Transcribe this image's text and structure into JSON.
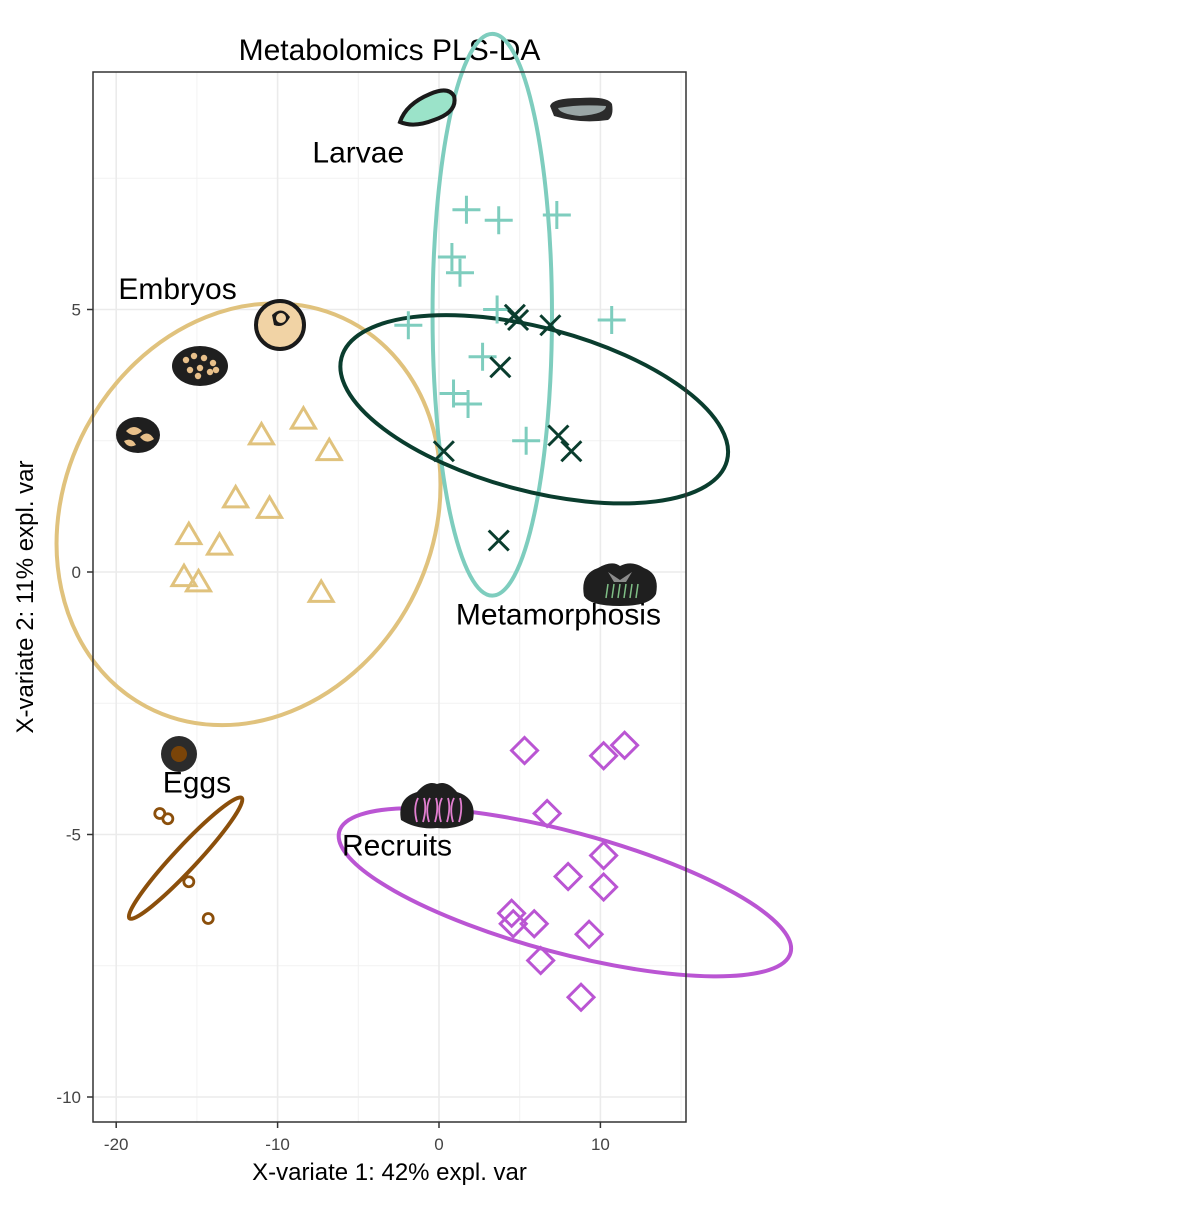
{
  "chart_data": {
    "type": "scatter",
    "title": "Metabolomics PLS-DA",
    "xlabel": "X-variate 1: 42% expl. var",
    "ylabel": "X-variate 2: 11% expl. var",
    "xlim": [
      -21.5,
      15.2
    ],
    "ylim": [
      -10.5,
      9.5
    ],
    "x_ticks": [
      -20,
      -10,
      0,
      10
    ],
    "y_ticks": [
      -10,
      -5,
      0,
      5
    ],
    "x_tick_labels": [
      "-20",
      "-10",
      "0",
      "10"
    ],
    "y_tick_labels": [
      "-10",
      "-5",
      "0",
      "5"
    ],
    "grid": true,
    "legend": "none",
    "groups": [
      {
        "label": "Eggs",
        "marker": "circle",
        "color": "#8B4F0B",
        "points": [
          [
            -17.3,
            -4.6
          ],
          [
            -16.8,
            -4.7
          ],
          [
            -15.5,
            -5.9
          ],
          [
            -14.3,
            -6.6
          ]
        ],
        "ellipse": {
          "cx": -15.7,
          "cy": -5.45,
          "rx": 5.1,
          "ry": 0.22,
          "angle_deg": -47
        },
        "label_pos": [
          -15,
          -4.2
        ]
      },
      {
        "label": "Embryos",
        "marker": "triangle",
        "color": "#E0C27D",
        "points": [
          [
            -11,
            2.6
          ],
          [
            -8.4,
            2.9
          ],
          [
            -6.8,
            2.3
          ],
          [
            -12.6,
            1.4
          ],
          [
            -10.5,
            1.2
          ],
          [
            -15.5,
            0.7
          ],
          [
            -13.6,
            0.5
          ],
          [
            -15.8,
            -0.1
          ],
          [
            -14.9,
            -0.2
          ],
          [
            -7.3,
            -0.4
          ]
        ],
        "ellipse": {
          "cx": -11.8,
          "cy": 1.1,
          "rx": 11.4,
          "ry": 4.15,
          "angle_deg": 28
        },
        "label_pos": [
          -16.2,
          5.2
        ]
      },
      {
        "label": "Larvae",
        "marker": "plus",
        "color": "#7ECDBE",
        "points": [
          [
            1.7,
            6.9
          ],
          [
            3.7,
            6.7
          ],
          [
            7.3,
            6.8
          ],
          [
            0.8,
            6.0
          ],
          [
            1.3,
            5.7
          ],
          [
            3.6,
            5.0
          ],
          [
            -1.9,
            4.7
          ],
          [
            10.7,
            4.8
          ],
          [
            2.7,
            4.1
          ],
          [
            0.9,
            3.4
          ],
          [
            1.8,
            3.2
          ],
          [
            5.4,
            2.5
          ]
        ],
        "ellipse": {
          "cx": 3.3,
          "cy": 4.9,
          "rx": 3.7,
          "ry": 5.35,
          "angle_deg": 0
        },
        "label_pos": [
          -5,
          7.8
        ]
      },
      {
        "label": "Metamorphosis",
        "marker": "x",
        "color": "#0A3D2E",
        "points": [
          [
            4.7,
            4.9
          ],
          [
            4.9,
            4.8
          ],
          [
            6.9,
            4.7
          ],
          [
            3.8,
            3.9
          ],
          [
            0.3,
            2.3
          ],
          [
            7.4,
            2.6
          ],
          [
            8.2,
            2.3
          ],
          [
            3.7,
            0.6
          ]
        ],
        "ellipse": {
          "cx": 5.9,
          "cy": 3.1,
          "rx": 5.05,
          "ry": 3.8,
          "angle_deg": -75
        },
        "label_pos": [
          7.4,
          -1.0
        ]
      },
      {
        "label": "Recruits",
        "marker": "diamond",
        "color": "#BA55D3",
        "points": [
          [
            5.3,
            -3.4
          ],
          [
            10.2,
            -3.5
          ],
          [
            11.5,
            -3.3
          ],
          [
            6.7,
            -4.6
          ],
          [
            10.2,
            -5.4
          ],
          [
            8.0,
            -5.8
          ],
          [
            10.2,
            -6.0
          ],
          [
            4.5,
            -6.5
          ],
          [
            4.6,
            -6.7
          ],
          [
            5.9,
            -6.7
          ],
          [
            9.3,
            -6.9
          ],
          [
            6.3,
            -7.4
          ],
          [
            8.8,
            -8.1
          ]
        ],
        "ellipse": {
          "cx": 7.8,
          "cy": -6.1,
          "rx": 3.75,
          "ry": 4.45,
          "angle_deg": 105
        },
        "label_pos": [
          -2.6,
          -5.4
        ]
      }
    ]
  }
}
